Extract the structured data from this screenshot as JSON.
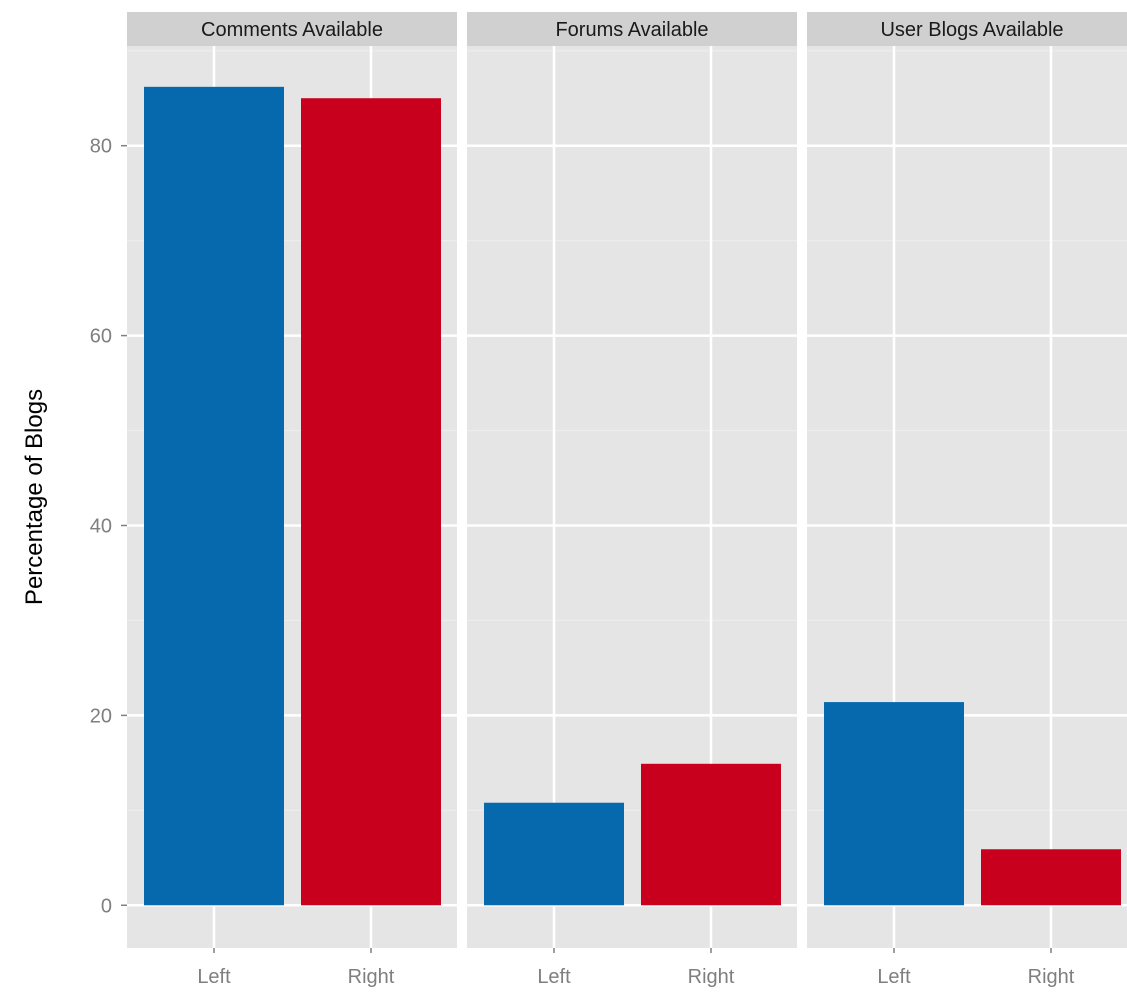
{
  "chart_data": {
    "type": "bar",
    "title": "",
    "xlabel": "",
    "ylabel": "Percentage of Blogs",
    "ylim": [
      -4.5,
      90.5
    ],
    "y_ticks": [
      0,
      20,
      40,
      60,
      80
    ],
    "grid": true,
    "categories": [
      "Left",
      "Right"
    ],
    "colors": {
      "Left": "#0769ad",
      "Right": "#c8001e"
    },
    "facets": [
      {
        "name": "Comments Available",
        "values": [
          86.2,
          85.0
        ]
      },
      {
        "name": "Forums Available",
        "values": [
          10.8,
          14.9
        ]
      },
      {
        "name": "User Blogs Available",
        "values": [
          21.4,
          5.9
        ]
      }
    ]
  }
}
